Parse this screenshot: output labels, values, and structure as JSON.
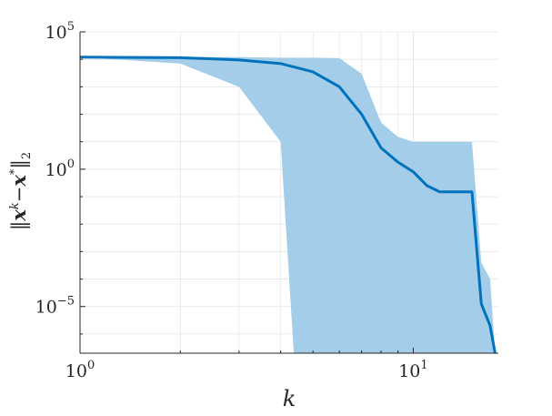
{
  "chart_data": {
    "type": "line",
    "xlabel": "k",
    "ylabel": "‖x^k − x*‖₂",
    "ylabel_parts": {
      "open": "‖",
      "x1": "x",
      "sup_k": "k",
      "minus": "−",
      "x2": "x",
      "sup_star": "*",
      "close": "‖",
      "sub": "2"
    },
    "xscale": "log",
    "yscale": "log",
    "xlim": [
      1,
      18
    ],
    "ylim": [
      2e-07,
      100000
    ],
    "x_ticks": [
      {
        "value": 1,
        "mantissa": "10",
        "exponent": "0"
      },
      {
        "value": 10,
        "mantissa": "10",
        "exponent": "1"
      }
    ],
    "y_ticks": [
      {
        "value": 100000,
        "mantissa": "10",
        "exponent": "5"
      },
      {
        "value": 1,
        "mantissa": "10",
        "exponent": "0"
      },
      {
        "value": 1e-05,
        "mantissa": "10",
        "exponent": "−5"
      }
    ],
    "grid": true,
    "colors": {
      "line": "#0072BD",
      "band": "#9ECAE8",
      "axis": "#262626",
      "grid": "#E6E6E6"
    },
    "series": [
      {
        "x": [
          1,
          2,
          3,
          4,
          5,
          6,
          7,
          8,
          9,
          10,
          11,
          12,
          13,
          14,
          15,
          16,
          17,
          17.6
        ],
        "values": [
          12000,
          11500,
          9500,
          7000,
          3500,
          1000,
          100,
          6,
          1.8,
          0.8,
          0.25,
          0.15,
          0.15,
          0.15,
          0.15,
          1.25e-05,
          2e-06,
          2e-07
        ]
      }
    ],
    "band": {
      "x": [
        1,
        2,
        3,
        4,
        5,
        6,
        7,
        8,
        9,
        10,
        11,
        12,
        13,
        14,
        15,
        16,
        17,
        17.6
      ],
      "upper": [
        12000,
        12000,
        12000,
        11500,
        11500,
        11000,
        3000,
        50,
        15,
        10,
        10,
        10,
        10,
        10,
        10,
        0.0004,
        0.0001,
        2e-07
      ],
      "lower": [
        12000,
        7000,
        1000,
        10,
        2e-07,
        2e-07,
        2e-07,
        2e-07,
        2e-07,
        2e-07,
        2e-07,
        2e-07,
        2e-07,
        2e-07,
        2e-07,
        2e-07,
        2e-07,
        2e-07
      ]
    },
    "band_cliff_x": 4.38
  }
}
